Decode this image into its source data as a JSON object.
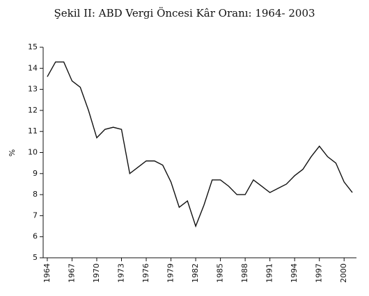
{
  "chart_data": {
    "type": "line",
    "title": "Şekil II:  ABD Vergi Öncesi Kâr Oranı: 1964- 2003",
    "y_label": "%",
    "x": [
      1964,
      1965,
      1966,
      1967,
      1968,
      1969,
      1970,
      1971,
      1972,
      1973,
      1974,
      1975,
      1976,
      1977,
      1978,
      1979,
      1980,
      1981,
      1982,
      1983,
      1984,
      1985,
      1986,
      1987,
      1988,
      1989,
      1990,
      1991,
      1992,
      1993,
      1994,
      1995,
      1996,
      1997,
      1998,
      1999,
      2000,
      2001
    ],
    "series": [
      {
        "name": "%",
        "color": "#111111",
        "values": [
          13.6,
          14.3,
          14.3,
          13.4,
          13.1,
          12.0,
          10.7,
          11.1,
          11.2,
          11.1,
          9.0,
          9.3,
          9.6,
          9.6,
          9.4,
          8.6,
          7.4,
          7.7,
          6.5,
          7.5,
          8.7,
          8.7,
          8.4,
          8.0,
          8.0,
          8.7,
          8.4,
          8.1,
          8.3,
          8.5,
          8.9,
          9.2,
          9.8,
          10.3,
          9.8,
          9.5,
          8.6,
          8.1
        ]
      }
    ],
    "xlim": [
      1963.5,
      2001.5
    ],
    "xticks": [
      1964,
      1967,
      1970,
      1973,
      1976,
      1979,
      1982,
      1985,
      1988,
      1991,
      1994,
      1997,
      2000
    ],
    "ylim": [
      5,
      15
    ],
    "yticks": [
      5,
      6,
      7,
      8,
      9,
      10,
      11,
      12,
      13,
      14,
      15
    ],
    "grid": false
  }
}
